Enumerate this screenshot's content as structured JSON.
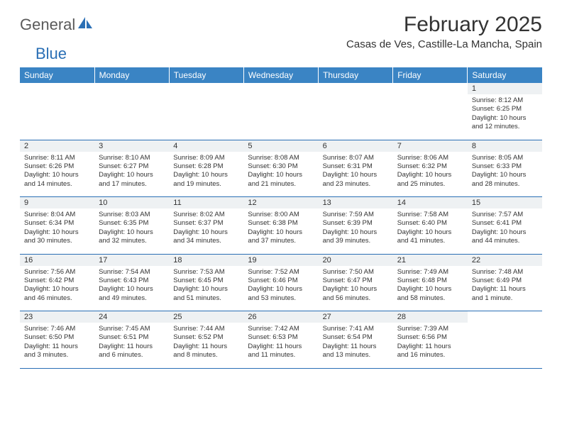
{
  "colors": {
    "header_bg": "#3a84c4",
    "header_text": "#ffffff",
    "daynum_bg": "#eef1f3",
    "border": "#2a6fb5",
    "logo_gray": "#5a5a5a",
    "logo_blue": "#2a6fb5",
    "body_text": "#333333",
    "page_bg": "#ffffff"
  },
  "logo": {
    "general": "General",
    "blue": "Blue"
  },
  "title": "February 2025",
  "location": "Casas de Ves, Castille-La Mancha, Spain",
  "daysOfWeek": [
    "Sunday",
    "Monday",
    "Tuesday",
    "Wednesday",
    "Thursday",
    "Friday",
    "Saturday"
  ],
  "weeks": [
    {
      "nums": [
        "",
        "",
        "",
        "",
        "",
        "",
        "1"
      ],
      "cells": [
        null,
        null,
        null,
        null,
        null,
        null,
        {
          "sunrise": "Sunrise: 8:12 AM",
          "sunset": "Sunset: 6:25 PM",
          "day1": "Daylight: 10 hours",
          "day2": "and 12 minutes."
        }
      ]
    },
    {
      "nums": [
        "2",
        "3",
        "4",
        "5",
        "6",
        "7",
        "8"
      ],
      "cells": [
        {
          "sunrise": "Sunrise: 8:11 AM",
          "sunset": "Sunset: 6:26 PM",
          "day1": "Daylight: 10 hours",
          "day2": "and 14 minutes."
        },
        {
          "sunrise": "Sunrise: 8:10 AM",
          "sunset": "Sunset: 6:27 PM",
          "day1": "Daylight: 10 hours",
          "day2": "and 17 minutes."
        },
        {
          "sunrise": "Sunrise: 8:09 AM",
          "sunset": "Sunset: 6:28 PM",
          "day1": "Daylight: 10 hours",
          "day2": "and 19 minutes."
        },
        {
          "sunrise": "Sunrise: 8:08 AM",
          "sunset": "Sunset: 6:30 PM",
          "day1": "Daylight: 10 hours",
          "day2": "and 21 minutes."
        },
        {
          "sunrise": "Sunrise: 8:07 AM",
          "sunset": "Sunset: 6:31 PM",
          "day1": "Daylight: 10 hours",
          "day2": "and 23 minutes."
        },
        {
          "sunrise": "Sunrise: 8:06 AM",
          "sunset": "Sunset: 6:32 PM",
          "day1": "Daylight: 10 hours",
          "day2": "and 25 minutes."
        },
        {
          "sunrise": "Sunrise: 8:05 AM",
          "sunset": "Sunset: 6:33 PM",
          "day1": "Daylight: 10 hours",
          "day2": "and 28 minutes."
        }
      ]
    },
    {
      "nums": [
        "9",
        "10",
        "11",
        "12",
        "13",
        "14",
        "15"
      ],
      "cells": [
        {
          "sunrise": "Sunrise: 8:04 AM",
          "sunset": "Sunset: 6:34 PM",
          "day1": "Daylight: 10 hours",
          "day2": "and 30 minutes."
        },
        {
          "sunrise": "Sunrise: 8:03 AM",
          "sunset": "Sunset: 6:35 PM",
          "day1": "Daylight: 10 hours",
          "day2": "and 32 minutes."
        },
        {
          "sunrise": "Sunrise: 8:02 AM",
          "sunset": "Sunset: 6:37 PM",
          "day1": "Daylight: 10 hours",
          "day2": "and 34 minutes."
        },
        {
          "sunrise": "Sunrise: 8:00 AM",
          "sunset": "Sunset: 6:38 PM",
          "day1": "Daylight: 10 hours",
          "day2": "and 37 minutes."
        },
        {
          "sunrise": "Sunrise: 7:59 AM",
          "sunset": "Sunset: 6:39 PM",
          "day1": "Daylight: 10 hours",
          "day2": "and 39 minutes."
        },
        {
          "sunrise": "Sunrise: 7:58 AM",
          "sunset": "Sunset: 6:40 PM",
          "day1": "Daylight: 10 hours",
          "day2": "and 41 minutes."
        },
        {
          "sunrise": "Sunrise: 7:57 AM",
          "sunset": "Sunset: 6:41 PM",
          "day1": "Daylight: 10 hours",
          "day2": "and 44 minutes."
        }
      ]
    },
    {
      "nums": [
        "16",
        "17",
        "18",
        "19",
        "20",
        "21",
        "22"
      ],
      "cells": [
        {
          "sunrise": "Sunrise: 7:56 AM",
          "sunset": "Sunset: 6:42 PM",
          "day1": "Daylight: 10 hours",
          "day2": "and 46 minutes."
        },
        {
          "sunrise": "Sunrise: 7:54 AM",
          "sunset": "Sunset: 6:43 PM",
          "day1": "Daylight: 10 hours",
          "day2": "and 49 minutes."
        },
        {
          "sunrise": "Sunrise: 7:53 AM",
          "sunset": "Sunset: 6:45 PM",
          "day1": "Daylight: 10 hours",
          "day2": "and 51 minutes."
        },
        {
          "sunrise": "Sunrise: 7:52 AM",
          "sunset": "Sunset: 6:46 PM",
          "day1": "Daylight: 10 hours",
          "day2": "and 53 minutes."
        },
        {
          "sunrise": "Sunrise: 7:50 AM",
          "sunset": "Sunset: 6:47 PM",
          "day1": "Daylight: 10 hours",
          "day2": "and 56 minutes."
        },
        {
          "sunrise": "Sunrise: 7:49 AM",
          "sunset": "Sunset: 6:48 PM",
          "day1": "Daylight: 10 hours",
          "day2": "and 58 minutes."
        },
        {
          "sunrise": "Sunrise: 7:48 AM",
          "sunset": "Sunset: 6:49 PM",
          "day1": "Daylight: 11 hours",
          "day2": "and 1 minute."
        }
      ]
    },
    {
      "nums": [
        "23",
        "24",
        "25",
        "26",
        "27",
        "28",
        ""
      ],
      "cells": [
        {
          "sunrise": "Sunrise: 7:46 AM",
          "sunset": "Sunset: 6:50 PM",
          "day1": "Daylight: 11 hours",
          "day2": "and 3 minutes."
        },
        {
          "sunrise": "Sunrise: 7:45 AM",
          "sunset": "Sunset: 6:51 PM",
          "day1": "Daylight: 11 hours",
          "day2": "and 6 minutes."
        },
        {
          "sunrise": "Sunrise: 7:44 AM",
          "sunset": "Sunset: 6:52 PM",
          "day1": "Daylight: 11 hours",
          "day2": "and 8 minutes."
        },
        {
          "sunrise": "Sunrise: 7:42 AM",
          "sunset": "Sunset: 6:53 PM",
          "day1": "Daylight: 11 hours",
          "day2": "and 11 minutes."
        },
        {
          "sunrise": "Sunrise: 7:41 AM",
          "sunset": "Sunset: 6:54 PM",
          "day1": "Daylight: 11 hours",
          "day2": "and 13 minutes."
        },
        {
          "sunrise": "Sunrise: 7:39 AM",
          "sunset": "Sunset: 6:56 PM",
          "day1": "Daylight: 11 hours",
          "day2": "and 16 minutes."
        },
        null
      ]
    }
  ]
}
